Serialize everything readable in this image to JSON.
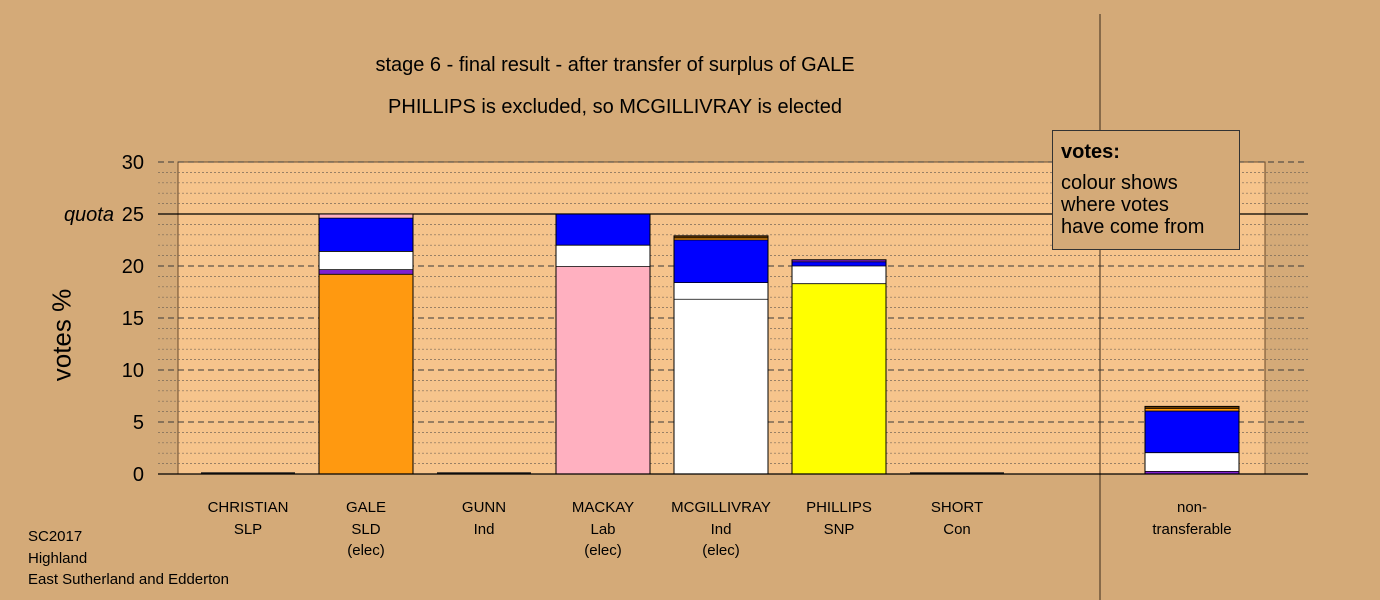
{
  "title": "stage 6 - final result - after transfer of surplus of GALE",
  "subtitle": "PHILLIPS is excluded, so MCGILLIVRAY is elected",
  "legend": {
    "title": "votes:",
    "text": "colour shows\nwhere votes\nhave come from"
  },
  "footer": [
    "SC2017",
    "Highland",
    "East Sutherland and Edderton"
  ],
  "chart_data": {
    "type": "bar",
    "stacked": true,
    "ylabel": "votes %",
    "ylim": [
      0,
      30
    ],
    "yticks": [
      0,
      5,
      10,
      15,
      20,
      25,
      30
    ],
    "quota": {
      "label": "quota",
      "value": 25
    },
    "grid": true,
    "categories": [
      {
        "lines": [
          "CHRISTIAN",
          "SLP"
        ],
        "segments": []
      },
      {
        "lines": [
          "GALE",
          "SLD",
          "(elec)"
        ],
        "segments": [
          {
            "source": "GALE",
            "color": "#ff9910",
            "value": 19.2
          },
          {
            "source": "MCGILLIVRAY",
            "color": "#7f1fcf",
            "value": 0.45
          },
          {
            "source": "MCGILLIVRAY",
            "color": "#ffffff",
            "value": 1.75
          },
          {
            "source": "transfer",
            "color": "#0000ff",
            "value": 3.2
          },
          {
            "source": "MACKAY",
            "color": "#ffb0c0",
            "value": 0.4
          }
        ]
      },
      {
        "lines": [
          "GUNN",
          "Ind"
        ],
        "segments": []
      },
      {
        "lines": [
          "MACKAY",
          "Lab",
          "(elec)"
        ],
        "segments": [
          {
            "source": "MACKAY",
            "color": "#ffb0c0",
            "value": 19.95
          },
          {
            "source": "MCGILLIVRAY",
            "color": "#ffffff",
            "value": 2.05
          },
          {
            "source": "transfer",
            "color": "#0000ff",
            "value": 3.0
          }
        ]
      },
      {
        "lines": [
          "MCGILLIVRAY",
          "Ind",
          "(elec)"
        ],
        "segments": [
          {
            "source": "MCGILLIVRAY",
            "color": "#ffffff",
            "value": 16.8
          },
          {
            "source": "MCGILLIVRAY",
            "color": "#ffffff",
            "value": 1.6
          },
          {
            "source": "transfer",
            "color": "#0000ff",
            "value": 4.1
          },
          {
            "source": "GALE",
            "color": "#ff9910",
            "value": 0.2
          },
          {
            "source": "other",
            "color": "#6b3b00",
            "value": 0.2
          }
        ]
      },
      {
        "lines": [
          "PHILLIPS",
          "SNP"
        ],
        "segments": [
          {
            "source": "PHILLIPS",
            "color": "#ffff00",
            "value": 18.3
          },
          {
            "source": "MCGILLIVRAY",
            "color": "#ffffff",
            "value": 1.7
          },
          {
            "source": "transfer",
            "color": "#0000ff",
            "value": 0.4
          },
          {
            "source": "other",
            "color": "#7f1fcf",
            "value": 0.2
          }
        ]
      },
      {
        "lines": [
          "SHORT",
          "Con"
        ],
        "segments": []
      },
      {
        "lines": [
          "non-",
          "transferable"
        ],
        "segments": [
          {
            "source": "other",
            "color": "#7f1fcf",
            "value": 0.25
          },
          {
            "source": "MCGILLIVRAY",
            "color": "#ffffff",
            "value": 1.8
          },
          {
            "source": "transfer",
            "color": "#0000ff",
            "value": 4.0
          },
          {
            "source": "GALE",
            "color": "#ff9910",
            "value": 0.25
          },
          {
            "source": "other",
            "color": "#6b3b00",
            "value": 0.2
          }
        ]
      }
    ]
  }
}
